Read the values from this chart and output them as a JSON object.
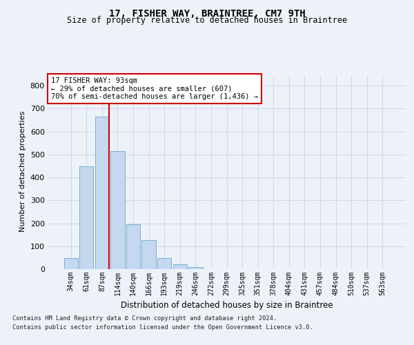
{
  "title": "17, FISHER WAY, BRAINTREE, CM7 9TH",
  "subtitle": "Size of property relative to detached houses in Braintree",
  "xlabel": "Distribution of detached houses by size in Braintree",
  "ylabel": "Number of detached properties",
  "categories": [
    "34sqm",
    "61sqm",
    "87sqm",
    "114sqm",
    "140sqm",
    "166sqm",
    "193sqm",
    "219sqm",
    "246sqm",
    "272sqm",
    "299sqm",
    "325sqm",
    "351sqm",
    "378sqm",
    "404sqm",
    "431sqm",
    "457sqm",
    "484sqm",
    "510sqm",
    "537sqm",
    "563sqm"
  ],
  "bar_heights": [
    47,
    447,
    664,
    515,
    196,
    125,
    47,
    22,
    8,
    0,
    0,
    0,
    0,
    0,
    0,
    0,
    0,
    0,
    0,
    0,
    0
  ],
  "bar_color": "#c5d8ef",
  "bar_edge_color": "#7aafd4",
  "grid_color": "#d0d8e8",
  "vline_color": "#cc0000",
  "vline_x_index": 2,
  "annotation_text": "17 FISHER WAY: 93sqm\n← 29% of detached houses are smaller (607)\n70% of semi-detached houses are larger (1,436) →",
  "annotation_box_facecolor": "#ffffff",
  "annotation_box_edgecolor": "#cc0000",
  "ylim": [
    0,
    850
  ],
  "yticks": [
    0,
    100,
    200,
    300,
    400,
    500,
    600,
    700,
    800
  ],
  "footer_line1": "Contains HM Land Registry data © Crown copyright and database right 2024.",
  "footer_line2": "Contains public sector information licensed under the Open Government Licence v3.0.",
  "background_color": "#edf2f9",
  "title_fontsize": 10,
  "subtitle_fontsize": 8.5,
  "bar_width": 0.9
}
